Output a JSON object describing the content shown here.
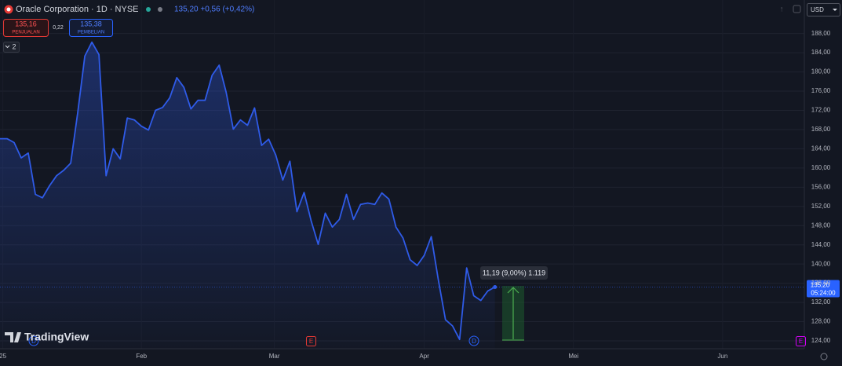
{
  "header": {
    "symbol": "Oracle Corporation · 1D · NYSE",
    "quote": "135,20 +0,56 (+0,42%)",
    "sell_price": "135,16",
    "sell_label": "PENJUALAN",
    "spread": "0,22",
    "buy_price": "135,38",
    "buy_label": "PEMBELIAN",
    "indicators": "2",
    "currency": "USD",
    "logo": "TradingView"
  },
  "price_tag": {
    "price": "135,20",
    "countdown": "05:24:00"
  },
  "measure": "11,19 (9,00%) 1.119",
  "events": [
    "D",
    "E",
    "D",
    "E"
  ],
  "chart_data": {
    "type": "area",
    "x": [
      0,
      1,
      2,
      3,
      4,
      5,
      6,
      7,
      8,
      9,
      10,
      11,
      12,
      13,
      14,
      15,
      16,
      17,
      18,
      19,
      20,
      21,
      22,
      23,
      24,
      25,
      26,
      27,
      28,
      29,
      30,
      31,
      32,
      33,
      34,
      35,
      36,
      37,
      38,
      39,
      40,
      41,
      42,
      43,
      44,
      45,
      46,
      47,
      48,
      49,
      50,
      51,
      52,
      53,
      54,
      55,
      56,
      57,
      58,
      59,
      60,
      61,
      62,
      63,
      64,
      65,
      66,
      67,
      68,
      69,
      70
    ],
    "series": [
      {
        "color": "#2f5be8",
        "values": [
          166.1,
          166.1,
          165.3,
          162.1,
          163.1,
          154.5,
          153.8,
          156.3,
          158.4,
          159.5,
          161.0,
          171.6,
          183.3,
          186.2,
          183.6,
          158.4,
          164.0,
          161.9,
          170.4,
          170.0,
          168.7,
          167.9,
          172.0,
          172.6,
          174.6,
          178.8,
          176.8,
          172.3,
          174.1,
          174.1,
          179.3,
          181.4,
          175.7,
          168.1,
          170.0,
          168.9,
          172.5,
          164.7,
          166.0,
          162.7,
          157.5,
          161.4,
          150.9,
          154.9,
          149.0,
          144.1,
          150.6,
          147.7,
          149.3,
          154.5,
          149.3,
          152.4,
          152.7,
          152.4,
          154.8,
          153.5,
          147.7,
          145.4,
          140.9,
          139.7,
          141.8,
          145.7,
          136.6,
          128.4,
          127.1,
          124.3,
          139.2,
          133.4,
          132.4,
          134.4,
          135.2
        ]
      }
    ],
    "xlim": [
      0,
      113.2
    ],
    "xticks": [
      {
        "value": 0.4,
        "label": "25"
      },
      {
        "value": 20,
        "label": "Feb"
      },
      {
        "value": 38.8,
        "label": "Mar"
      },
      {
        "value": 60,
        "label": "Apr"
      },
      {
        "value": 81.1,
        "label": "Mei"
      },
      {
        "value": 102.2,
        "label": "Jun"
      }
    ],
    "ylim": [
      122.2,
      190.4
    ],
    "yticks": [
      {
        "value": 124,
        "label": "124,00"
      },
      {
        "value": 128,
        "label": "128,00"
      },
      {
        "value": 132,
        "label": "132,00"
      },
      {
        "value": 136,
        "label": "136,00"
      },
      {
        "value": 140,
        "label": "140,00"
      },
      {
        "value": 144,
        "label": "144,00"
      },
      {
        "value": 148,
        "label": "148,00"
      },
      {
        "value": 152,
        "label": "152,00"
      },
      {
        "value": 156,
        "label": "156,00"
      },
      {
        "value": 160,
        "label": "160,00"
      },
      {
        "value": 164,
        "label": "164,00"
      },
      {
        "value": 168,
        "label": "168,00"
      },
      {
        "value": 172,
        "label": "172,00"
      },
      {
        "value": 176,
        "label": "176,00"
      },
      {
        "value": 180,
        "label": "180,00"
      },
      {
        "value": 184,
        "label": "184,00"
      },
      {
        "value": 188,
        "label": "188,00"
      }
    ],
    "grid": true
  }
}
